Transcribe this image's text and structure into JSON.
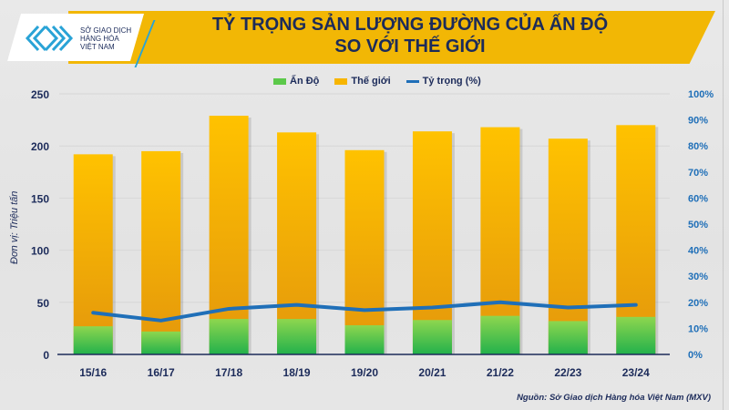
{
  "header": {
    "logo_text": [
      "SỞ GIAO DỊCH",
      "HÀNG HÓA",
      "VIỆT NAM"
    ],
    "title_line1": "TỶ TRỌNG SẢN LƯỢNG ĐƯỜNG CỦA ẤN ĐỘ",
    "title_line2": "SO VỚI THẾ GIỚI"
  },
  "legend": [
    {
      "label": "Ấn Độ",
      "color": "#5cc94a",
      "kind": "bar"
    },
    {
      "label": "Thế giới",
      "color": "#f7b500",
      "kind": "bar"
    },
    {
      "label": "Tỷ trọng (%)",
      "color": "#1f6fb8",
      "kind": "line"
    }
  ],
  "y_left_label": "Đơn vị: Triệu tấn",
  "source": "Nguồn: Sở Giao dịch Hàng hóa Việt Nam (MXV)",
  "colors": {
    "title": "#1c2b5a",
    "banner": "#f2b705",
    "axis_left": "#1c2b5a",
    "axis_right": "#1f6fb8"
  },
  "chart_data": {
    "type": "bar",
    "title": "TỶ TRỌNG SẢN LƯỢNG ĐƯỜNG CỦA ẤN ĐỘ SO VỚI THẾ GIỚI",
    "xlabel": "",
    "ylabel": "Đơn vị: Triệu tấn",
    "y2label": "Tỷ trọng (%)",
    "categories": [
      "15/16",
      "16/17",
      "17/18",
      "18/19",
      "19/20",
      "20/21",
      "21/22",
      "22/23",
      "23/24"
    ],
    "series": [
      {
        "name": "Ấn Độ",
        "type": "bar",
        "axis": "left",
        "values": [
          27,
          22,
          34,
          34,
          28,
          33,
          37,
          32,
          36
        ]
      },
      {
        "name": "Thế giới",
        "type": "bar",
        "axis": "left",
        "values": [
          192,
          195,
          229,
          213,
          196,
          214,
          218,
          207,
          220
        ]
      },
      {
        "name": "Tỷ trọng (%)",
        "type": "line",
        "axis": "right",
        "values": [
          16,
          13,
          17.5,
          19,
          17,
          18,
          20,
          18,
          19
        ]
      }
    ],
    "ylim": [
      0,
      250
    ],
    "yticks": [
      0,
      50,
      100,
      150,
      200,
      250
    ],
    "y2lim": [
      0,
      100
    ],
    "y2ticks": [
      "0%",
      "10%",
      "20%",
      "30%",
      "40%",
      "50%",
      "60%",
      "70%",
      "80%",
      "90%",
      "100%"
    ],
    "grid": true,
    "legend_position": "top"
  }
}
